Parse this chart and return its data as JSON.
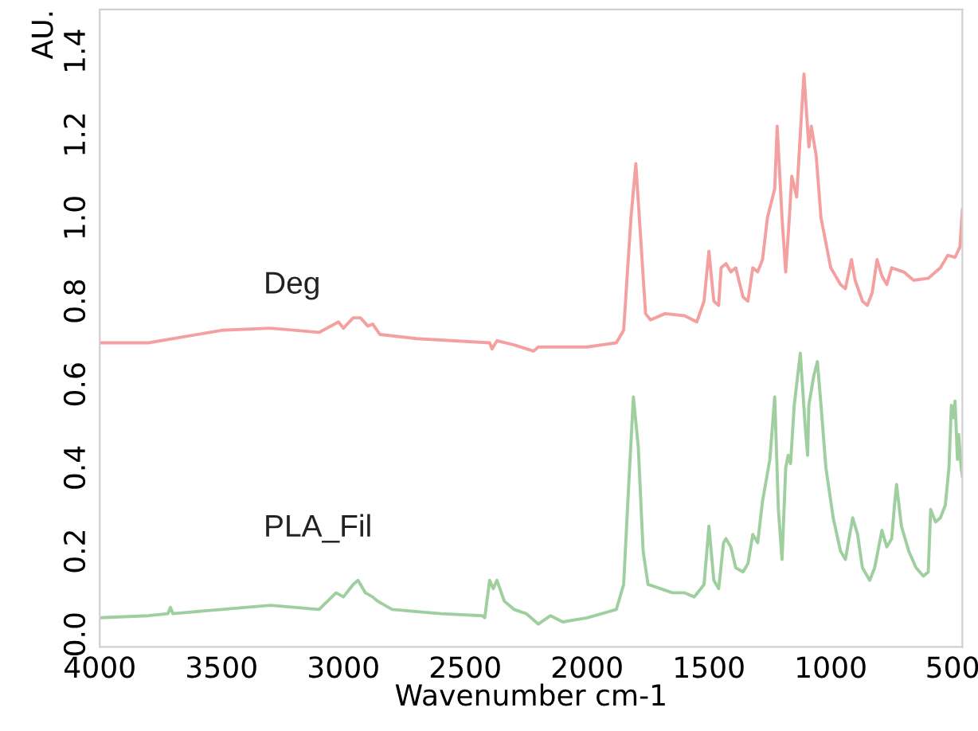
{
  "chart_data": {
    "type": "line",
    "xlabel": "Wavenumber cm-1",
    "ylabel": "AU.",
    "legend": false,
    "grid": false,
    "marker": "none",
    "line_style": "solid",
    "xlim": [
      4000,
      460
    ],
    "ylim": [
      -0.03,
      1.5
    ],
    "xticks": [
      4000,
      3500,
      3000,
      2500,
      2000,
      1500,
      1000,
      500
    ],
    "yticks": [
      {
        "value": 0,
        "label": "0.0"
      },
      {
        "value": 0.2,
        "label": "0.2"
      },
      {
        "value": 0.4,
        "label": "0.4"
      },
      {
        "value": 0.6,
        "label": "0.6"
      },
      {
        "value": 0.8,
        "label": "0.8"
      },
      {
        "value": 1.0,
        "label": "1.0"
      },
      {
        "value": 1.2,
        "label": "1.2"
      },
      {
        "value": 1.4,
        "label": "1.4"
      }
    ],
    "series": [
      {
        "name": "Deg",
        "color": "#f4a0a0",
        "x": [
          4000,
          3800,
          3500,
          3300,
          3100,
          3020,
          3000,
          2960,
          2930,
          2900,
          2880,
          2850,
          2700,
          2400,
          2390,
          2370,
          2300,
          2220,
          2200,
          2000,
          1880,
          1850,
          1820,
          1800,
          1780,
          1760,
          1740,
          1680,
          1600,
          1550,
          1520,
          1500,
          1480,
          1460,
          1450,
          1430,
          1410,
          1390,
          1360,
          1340,
          1320,
          1300,
          1280,
          1260,
          1230,
          1220,
          1200,
          1185,
          1170,
          1160,
          1140,
          1120,
          1110,
          1090,
          1080,
          1060,
          1040,
          1000,
          960,
          940,
          915,
          900,
          870,
          850,
          830,
          810,
          790,
          770,
          750,
          700,
          660,
          600,
          550,
          520,
          490,
          470,
          460
        ],
        "values": [
          0.7,
          0.7,
          0.73,
          0.735,
          0.725,
          0.75,
          0.735,
          0.76,
          0.76,
          0.74,
          0.745,
          0.72,
          0.71,
          0.7,
          0.685,
          0.705,
          0.695,
          0.68,
          0.69,
          0.69,
          0.7,
          0.73,
          1.0,
          1.13,
          0.95,
          0.77,
          0.755,
          0.77,
          0.765,
          0.75,
          0.8,
          0.92,
          0.8,
          0.79,
          0.88,
          0.89,
          0.87,
          0.88,
          0.81,
          0.8,
          0.88,
          0.87,
          0.9,
          1.0,
          1.07,
          1.22,
          1.0,
          0.87,
          1.0,
          1.1,
          1.05,
          1.25,
          1.345,
          1.17,
          1.22,
          1.15,
          1.0,
          0.88,
          0.84,
          0.83,
          0.9,
          0.85,
          0.8,
          0.79,
          0.82,
          0.9,
          0.86,
          0.84,
          0.88,
          0.87,
          0.85,
          0.855,
          0.88,
          0.91,
          0.905,
          0.93,
          1.02
        ]
      },
      {
        "name": "PLA_Fil",
        "color": "#9fcf9f",
        "x": [
          4000,
          3800,
          3720,
          3710,
          3700,
          3500,
          3300,
          3100,
          3030,
          3000,
          2960,
          2940,
          2910,
          2880,
          2860,
          2800,
          2600,
          2430,
          2420,
          2400,
          2385,
          2370,
          2340,
          2300,
          2250,
          2200,
          2150,
          2100,
          2000,
          1880,
          1850,
          1830,
          1810,
          1790,
          1770,
          1750,
          1700,
          1650,
          1600,
          1560,
          1520,
          1500,
          1480,
          1460,
          1440,
          1430,
          1410,
          1390,
          1360,
          1340,
          1320,
          1300,
          1280,
          1250,
          1230,
          1215,
          1200,
          1185,
          1175,
          1165,
          1150,
          1125,
          1105,
          1095,
          1090,
          1070,
          1055,
          1040,
          1020,
          990,
          960,
          940,
          910,
          890,
          870,
          840,
          820,
          790,
          770,
          750,
          740,
          730,
          710,
          680,
          650,
          620,
          600,
          590,
          570,
          550,
          530,
          515,
          505,
          495,
          490,
          480,
          475,
          465,
          460
        ],
        "values": [
          0.04,
          0.045,
          0.05,
          0.065,
          0.05,
          0.06,
          0.07,
          0.06,
          0.1,
          0.09,
          0.12,
          0.13,
          0.1,
          0.09,
          0.08,
          0.06,
          0.05,
          0.045,
          0.04,
          0.13,
          0.11,
          0.13,
          0.08,
          0.06,
          0.05,
          0.025,
          0.045,
          0.03,
          0.04,
          0.06,
          0.12,
          0.35,
          0.57,
          0.45,
          0.2,
          0.12,
          0.11,
          0.1,
          0.1,
          0.09,
          0.12,
          0.26,
          0.13,
          0.11,
          0.22,
          0.23,
          0.21,
          0.16,
          0.15,
          0.17,
          0.24,
          0.22,
          0.32,
          0.42,
          0.57,
          0.3,
          0.18,
          0.4,
          0.43,
          0.41,
          0.55,
          0.675,
          0.5,
          0.43,
          0.55,
          0.62,
          0.655,
          0.55,
          0.4,
          0.28,
          0.2,
          0.18,
          0.28,
          0.24,
          0.16,
          0.13,
          0.16,
          0.25,
          0.21,
          0.23,
          0.3,
          0.36,
          0.26,
          0.2,
          0.16,
          0.14,
          0.15,
          0.3,
          0.27,
          0.28,
          0.31,
          0.4,
          0.55,
          0.52,
          0.56,
          0.42,
          0.48,
          0.4,
          0.38
        ]
      }
    ]
  }
}
